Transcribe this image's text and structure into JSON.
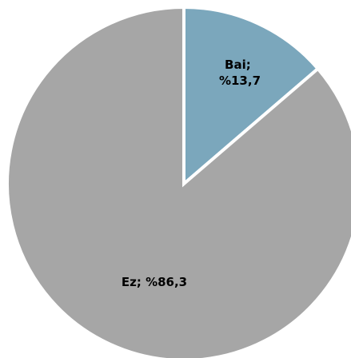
{
  "chart_data": {
    "type": "pie",
    "categories": [
      "Bai",
      "Ez"
    ],
    "values": [
      13.7,
      86.3
    ],
    "data_labels": [
      {
        "line1": "Bai;",
        "line2": "%13,7"
      },
      {
        "line1": "Ez; %86,3",
        "line2": ""
      }
    ],
    "colors": [
      "#7BA7BC",
      "#A6A6A6"
    ],
    "start": "12 o'clock",
    "direction": "clockwise",
    "legend": "none"
  }
}
